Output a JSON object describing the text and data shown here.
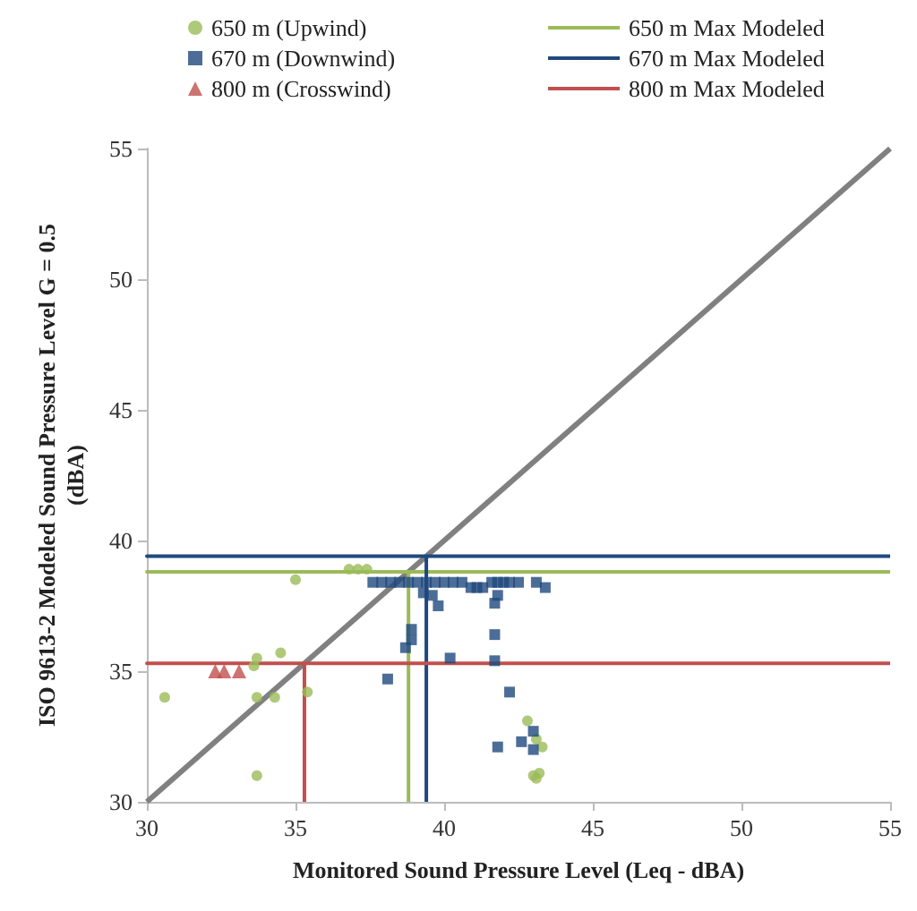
{
  "chart_data": {
    "type": "scatter",
    "xlabel": "Monitored Sound Pressure Level (Leq - dBA)",
    "ylabel": "ISO 9613-2 Modeled Sound Pressure Level G = 0.5\n(dBA)",
    "xlim": [
      30,
      55
    ],
    "ylim": [
      30,
      55
    ],
    "xticks": [
      30,
      35,
      40,
      45,
      50,
      55
    ],
    "yticks": [
      30,
      35,
      40,
      45,
      50,
      55
    ],
    "grid": false,
    "legend": "top",
    "series": [
      {
        "name": "650 m (Upwind)",
        "marker": "circle",
        "color": "#9bbb59",
        "x": [
          35.0,
          36.8,
          37.1,
          37.4,
          33.7,
          33.6,
          34.5,
          30.6,
          33.7,
          34.3,
          35.4,
          33.7,
          42.8,
          43.1,
          43.3,
          43.0,
          43.2,
          43.1
        ],
        "values": [
          38.5,
          38.9,
          38.9,
          38.9,
          35.5,
          35.2,
          35.7,
          34.0,
          34.0,
          34.0,
          34.2,
          31.0,
          33.1,
          32.4,
          32.1,
          31.0,
          31.1,
          30.9
        ]
      },
      {
        "name": "670 m (Downwind)",
        "marker": "square",
        "color": "#1f497d",
        "x": [
          37.6,
          37.9,
          38.2,
          38.5,
          38.8,
          39.1,
          39.4,
          39.7,
          40.0,
          40.3,
          40.6,
          40.9,
          41.1,
          41.3,
          41.6,
          41.8,
          42.0,
          42.2,
          42.5,
          43.1,
          43.4,
          39.3,
          39.6,
          39.8,
          38.9,
          38.9,
          38.7,
          40.2,
          41.7,
          41.7,
          41.7,
          41.8,
          42.2,
          43.0,
          42.6,
          43.0,
          41.8,
          38.1
        ],
        "values": [
          38.4,
          38.4,
          38.4,
          38.4,
          38.4,
          38.4,
          38.4,
          38.4,
          38.4,
          38.4,
          38.4,
          38.2,
          38.2,
          38.2,
          38.4,
          38.4,
          38.4,
          38.4,
          38.4,
          38.4,
          38.2,
          38.0,
          37.9,
          37.5,
          36.6,
          36.2,
          35.9,
          35.5,
          35.4,
          36.4,
          37.6,
          37.9,
          34.2,
          32.7,
          32.3,
          32.0,
          32.1,
          34.7
        ]
      },
      {
        "name": "800 m (Crosswind)",
        "marker": "triangle",
        "color": "#c0504d",
        "x": [
          32.3,
          32.6,
          33.1
        ],
        "values": [
          35.0,
          35.0,
          35.0
        ]
      },
      {
        "name": "650 m Max Modeled",
        "type": "line",
        "marker": "none",
        "line_style": "solid",
        "color": "#9bbb59",
        "x": [
          38.8,
          38.8,
          30,
          55
        ],
        "values": [
          30,
          38.8,
          38.8,
          38.8
        ]
      },
      {
        "name": "670 m Max Modeled",
        "type": "line",
        "marker": "none",
        "line_style": "solid",
        "color": "#1f497d",
        "x": [
          39.4,
          39.4,
          30,
          55
        ],
        "values": [
          30,
          39.4,
          39.4,
          39.4
        ]
      },
      {
        "name": "800 m Max Modeled",
        "type": "line",
        "marker": "none",
        "line_style": "solid",
        "color": "#c0504d",
        "x": [
          35.3,
          35.3,
          30,
          55
        ],
        "values": [
          30,
          35.3,
          35.3,
          35.3
        ]
      },
      {
        "type": "line",
        "marker": "none",
        "line_style": "solid",
        "color": "#808080",
        "x": [
          30,
          55
        ],
        "values": [
          30,
          55
        ]
      }
    ]
  }
}
